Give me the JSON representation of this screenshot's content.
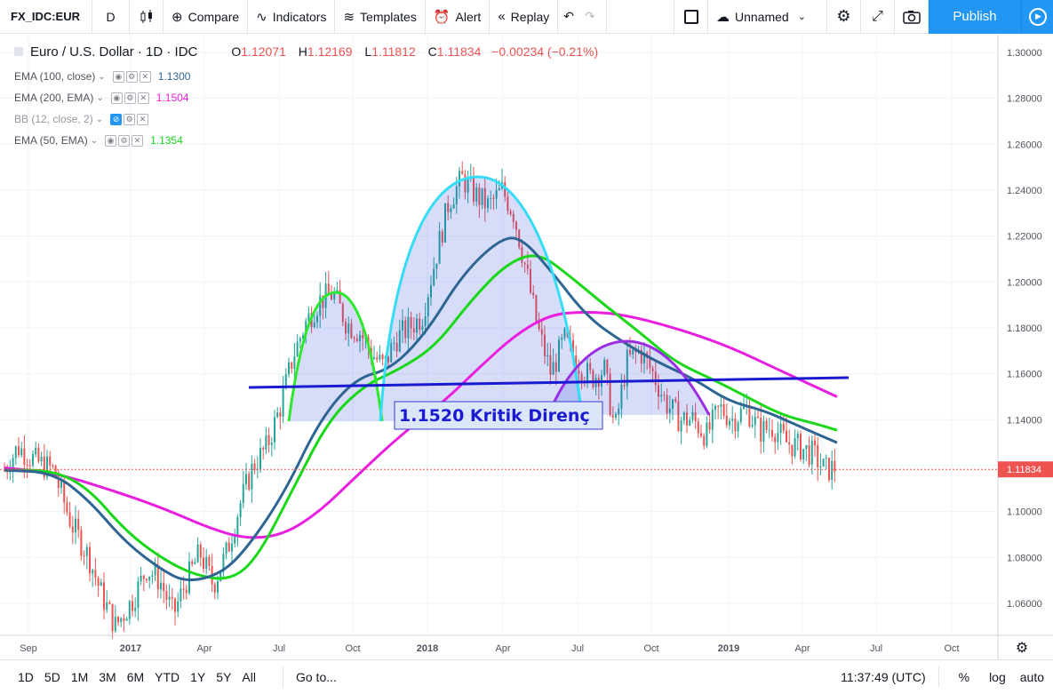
{
  "toolbar": {
    "symbol": "FX_IDC:EUR",
    "interval": "D",
    "compare": "Compare",
    "indicators": "Indicators",
    "templates": "Templates",
    "alert": "Alert",
    "replay": "Replay",
    "layout_name": "Unnamed",
    "publish": "Publish"
  },
  "legend": {
    "title": "Euro / U.S. Dollar · 1D · IDC",
    "open_label": "O",
    "open": "1.12071",
    "high_label": "H",
    "high": "1.12169",
    "low_label": "L",
    "low": "1.11812",
    "close_label": "C",
    "close": "1.11834",
    "change": "−0.00234 (−0.21%)",
    "indicators": [
      {
        "label": "EMA (100, close)",
        "value": "1.1300",
        "color": "#2e6592"
      },
      {
        "label": "EMA (200, EMA)",
        "value": "1.1504",
        "color": "#e91ee0"
      },
      {
        "label": "BB (12, close, 2)",
        "value": "",
        "color": "#9598a1"
      },
      {
        "label": "EMA (50, EMA)",
        "value": "1.1354",
        "color": "#18d818"
      }
    ]
  },
  "annotation": {
    "text": "1.1520 Kritik Direnç"
  },
  "price_axis": {
    "ticks": [
      "1.30000",
      "1.28000",
      "1.26000",
      "1.24000",
      "1.22000",
      "1.20000",
      "1.18000",
      "1.16000",
      "1.14000",
      "1.12000",
      "1.10000",
      "1.08000",
      "1.06000"
    ],
    "current_price": "1.11834"
  },
  "time_axis": {
    "labels": [
      "Sep",
      "2017",
      "Apr",
      "Jul",
      "Oct",
      "2018",
      "Apr",
      "Jul",
      "Oct",
      "2019",
      "Apr",
      "Jul",
      "Oct"
    ],
    "bold": [
      "2017",
      "2018",
      "2019"
    ]
  },
  "bottom": {
    "ranges": [
      "1D",
      "5D",
      "1M",
      "3M",
      "6M",
      "YTD",
      "1Y",
      "5Y",
      "All"
    ],
    "goto": "Go to...",
    "time": "11:37:49 (UTC)",
    "percent": "%",
    "log": "log",
    "auto": "auto"
  },
  "colors": {
    "ema100": "#2e6592",
    "ema200": "#e91ee0",
    "ema50": "#18d818",
    "up": "#26a69a",
    "down": "#ef5350",
    "neckline": "#1a1ad1",
    "accent": "#2196f3"
  },
  "chart_data": {
    "type": "candlestick",
    "series": [
      {
        "name": "EMA (100, close)",
        "value": 1.13
      },
      {
        "name": "EMA (200, EMA)",
        "value": 1.1504
      },
      {
        "name": "EMA (50, EMA)",
        "value": 1.1354
      }
    ],
    "ylim": [
      1.05,
      1.305
    ],
    "neckline": 1.152,
    "last_close": 1.11834
  }
}
